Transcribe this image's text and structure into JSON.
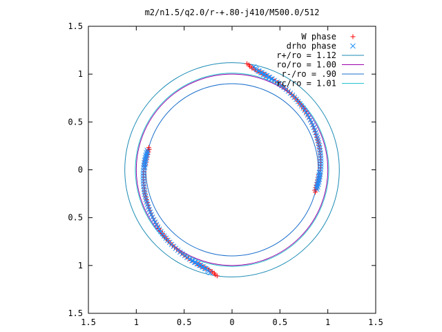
{
  "chart_data": {
    "type": "scatter",
    "title": "m2/n1.5/q2.0/r-+.80-j410/M500.0/512",
    "xlabel": "",
    "ylabel": "",
    "xlim": [
      -1.5,
      1.5
    ],
    "ylim": [
      -1.5,
      1.5
    ],
    "x_ticks": [
      -1.5,
      -1,
      -0.5,
      0,
      0.5,
      1,
      1.5
    ],
    "y_ticks": [
      -1.5,
      -1,
      -0.5,
      0,
      0.5,
      1,
      1.5
    ],
    "x_tick_labels": [
      "1.5",
      "1",
      "0.5",
      "0",
      "0.5",
      "1",
      "1.5"
    ],
    "y_tick_labels": [
      "1.5",
      "1",
      "0.5",
      "0",
      "0.5",
      "1",
      "1.5"
    ],
    "grid": false,
    "legend_position": "top-right",
    "series": [
      {
        "name": "W phase",
        "kind": "points",
        "marker": "plus",
        "color": "#ff0000",
        "arcs": [
          {
            "angle_start_deg": 82,
            "angle_end_deg": -15,
            "radius_start": 1.12,
            "radius_end": 0.9,
            "count": 55
          },
          {
            "angle_start_deg": 262,
            "angle_end_deg": 165,
            "radius_start": 1.12,
            "radius_end": 0.9,
            "count": 55
          }
        ]
      },
      {
        "name": "drho phase",
        "kind": "points",
        "marker": "cross",
        "color": "#1e90ff",
        "arcs": [
          {
            "angle_start_deg": 78,
            "angle_end_deg": -13,
            "radius_start": 1.1,
            "radius_end": 0.91,
            "count": 55
          },
          {
            "angle_start_deg": 258,
            "angle_end_deg": 167,
            "radius_start": 1.1,
            "radius_end": 0.91,
            "count": 55
          }
        ]
      },
      {
        "name": "r+/ro = 1.12",
        "kind": "circle",
        "radius": 1.12,
        "color": "#1a8ab4"
      },
      {
        "name": "ro/ro = 1.00",
        "kind": "circle",
        "radius": 1.0,
        "color": "#9900aa"
      },
      {
        "name": "r-/ro = .90",
        "kind": "circle",
        "radius": 0.9,
        "color": "#1a6ecc"
      },
      {
        "name": "rc/ro = 1.01",
        "kind": "circle",
        "radius": 1.01,
        "color": "#22c4cc"
      }
    ]
  }
}
